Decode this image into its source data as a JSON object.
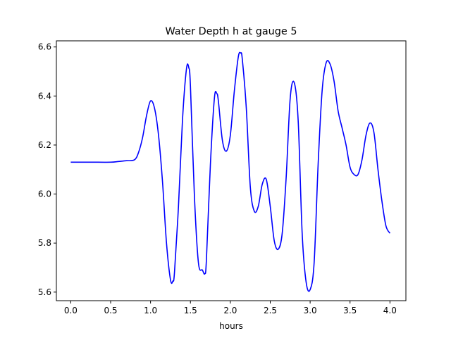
{
  "chart_data": {
    "type": "line",
    "title": "Water Depth h at gauge 5",
    "xlabel": "hours",
    "ylabel": "",
    "xlim": [
      -0.18,
      4.2
    ],
    "ylim": [
      5.565,
      6.625
    ],
    "xticks": [
      0.0,
      0.5,
      1.0,
      1.5,
      2.0,
      2.5,
      3.0,
      3.5,
      4.0
    ],
    "xtick_labels": [
      "0.0",
      "0.5",
      "1.0",
      "1.5",
      "2.0",
      "2.5",
      "3.0",
      "3.5",
      "4.0"
    ],
    "yticks": [
      5.6,
      5.8,
      6.0,
      6.2,
      6.4,
      6.6
    ],
    "ytick_labels": [
      "5.6",
      "5.8",
      "6.0",
      "6.2",
      "6.4",
      "6.6"
    ],
    "grid": false,
    "series": [
      {
        "color": "#0000ff",
        "x": [
          0.0,
          0.25,
          0.5,
          0.6,
          0.7,
          0.8,
          0.85,
          0.9,
          0.95,
          1.0,
          1.05,
          1.1,
          1.15,
          1.2,
          1.25,
          1.28,
          1.3,
          1.35,
          1.4,
          1.45,
          1.48,
          1.5,
          1.55,
          1.6,
          1.65,
          1.68,
          1.7,
          1.75,
          1.8,
          1.83,
          1.85,
          1.9,
          1.95,
          2.0,
          2.05,
          2.1,
          2.13,
          2.15,
          2.2,
          2.25,
          2.3,
          2.35,
          2.4,
          2.45,
          2.5,
          2.55,
          2.6,
          2.65,
          2.7,
          2.75,
          2.8,
          2.85,
          2.9,
          2.95,
          3.0,
          3.05,
          3.1,
          3.15,
          3.2,
          3.25,
          3.3,
          3.35,
          3.4,
          3.45,
          3.5,
          3.55,
          3.6,
          3.65,
          3.7,
          3.75,
          3.8,
          3.85,
          3.9,
          3.95,
          4.0
        ],
        "y": [
          6.13,
          6.13,
          6.13,
          6.133,
          6.136,
          6.14,
          6.17,
          6.23,
          6.32,
          6.38,
          6.35,
          6.24,
          6.05,
          5.8,
          5.65,
          5.645,
          5.68,
          5.95,
          6.3,
          6.51,
          6.515,
          6.44,
          5.99,
          5.72,
          5.69,
          5.675,
          5.73,
          6.12,
          6.39,
          6.41,
          6.38,
          6.22,
          6.175,
          6.24,
          6.42,
          6.56,
          6.575,
          6.55,
          6.35,
          6.03,
          5.93,
          5.95,
          6.04,
          6.06,
          5.95,
          5.81,
          5.775,
          5.84,
          6.07,
          6.39,
          6.455,
          6.3,
          5.84,
          5.64,
          5.61,
          5.72,
          6.12,
          6.42,
          6.535,
          6.53,
          6.46,
          6.34,
          6.27,
          6.2,
          6.11,
          6.08,
          6.08,
          6.14,
          6.24,
          6.29,
          6.25,
          6.1,
          5.97,
          5.87,
          5.84
        ]
      }
    ]
  }
}
